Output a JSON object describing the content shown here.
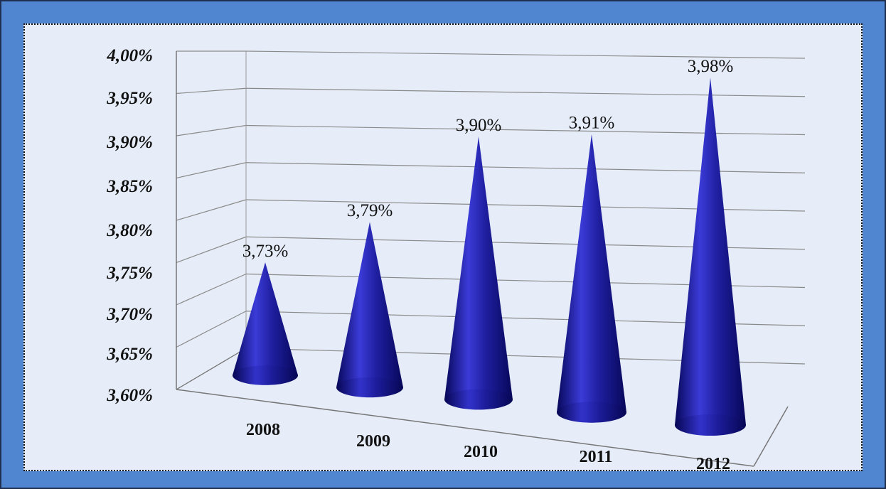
{
  "chart_data": {
    "type": "bar",
    "shape": "cone-3d",
    "categories": [
      "2008",
      "2009",
      "2010",
      "2011",
      "2012"
    ],
    "values": [
      3.73,
      3.79,
      3.9,
      3.91,
      3.98
    ],
    "data_labels": [
      "3,73%",
      "3,79%",
      "3,90%",
      "3,91%",
      "3,98%"
    ],
    "yticks": [
      "3,60%",
      "3,65%",
      "3,70%",
      "3,75%",
      "3,80%",
      "3,85%",
      "3,90%",
      "3,95%",
      "4,00%"
    ],
    "ylim": [
      3.6,
      4.0
    ],
    "grid": true,
    "legend": "none",
    "colors": {
      "cone": "#1f1fa0",
      "cone_dark": "#07075a",
      "cone_light": "#3b3bd8",
      "outer_frame": "#4f86cf",
      "panel": "#e6edf8",
      "gridline": "#8a8a8a"
    }
  }
}
